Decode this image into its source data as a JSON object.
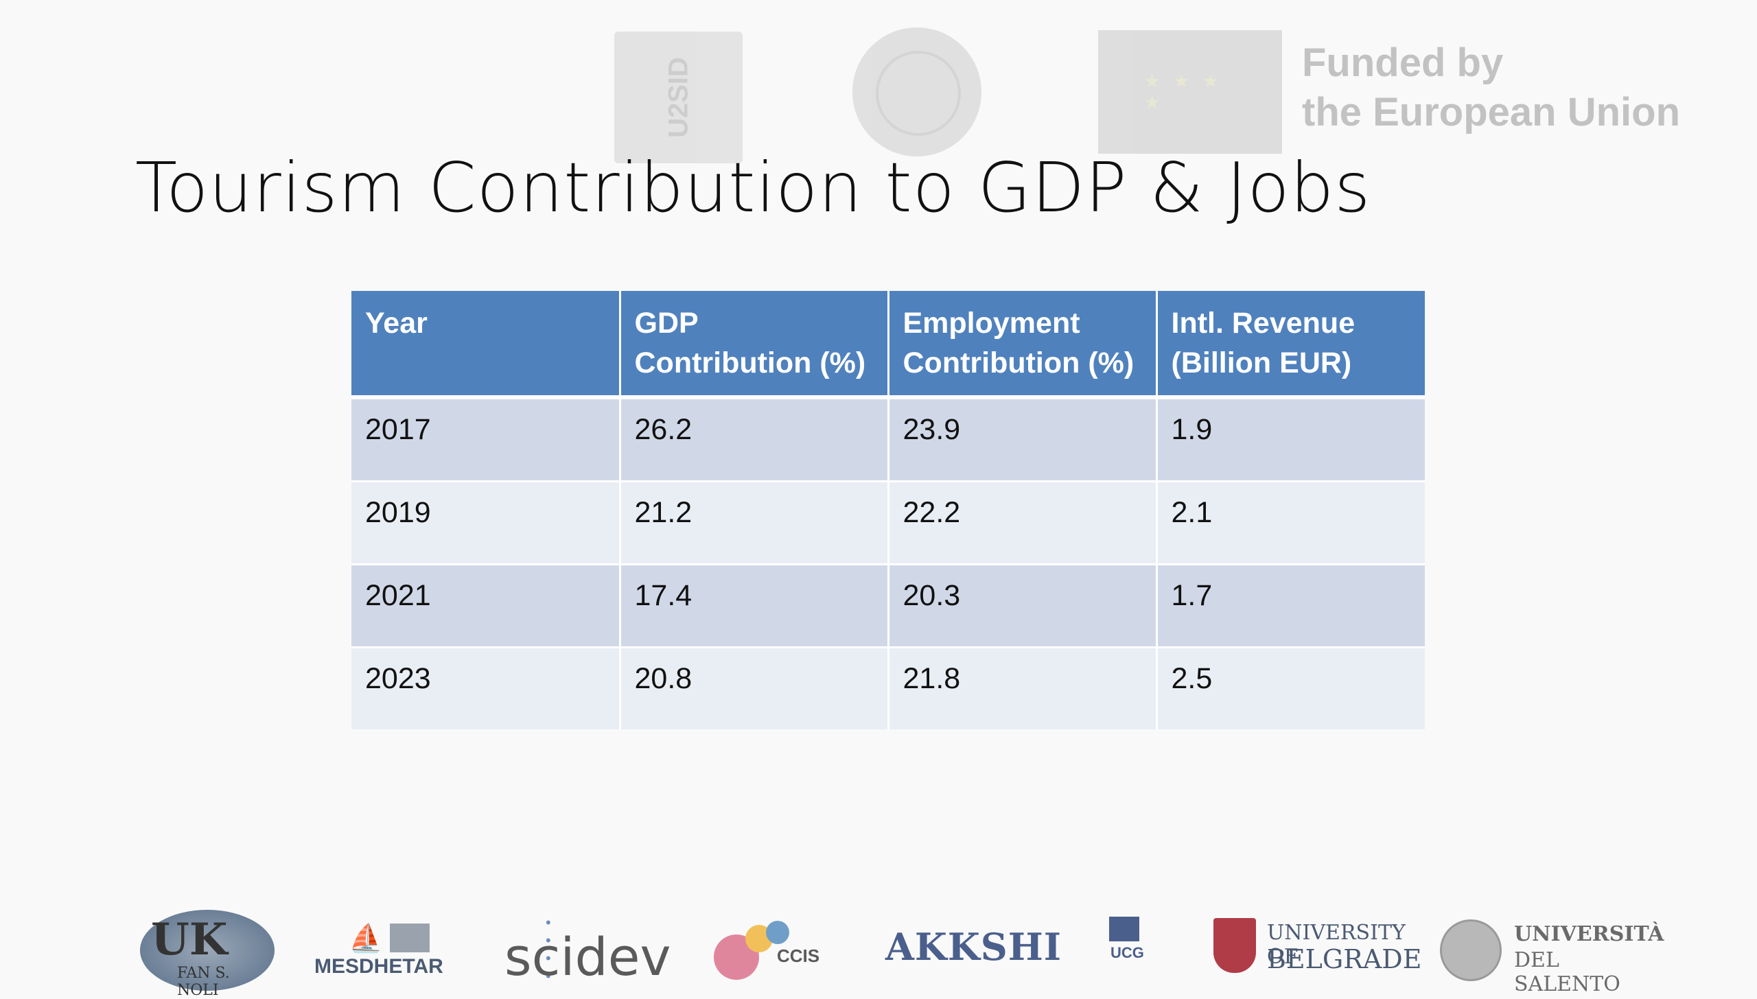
{
  "slide": {
    "title": "Tourism Contribution to GDP & Jobs",
    "funding_line1": "Funded by",
    "funding_line2": "the European Union"
  },
  "table": {
    "headers": [
      [
        "Year",
        ""
      ],
      [
        "GDP",
        "Contribution (%)"
      ],
      [
        "Employment",
        "Contribution (%)"
      ],
      [
        "Intl. Revenue",
        "(Billion EUR)"
      ]
    ],
    "rows": [
      [
        "2017",
        "26.2",
        "23.9",
        "1.9"
      ],
      [
        "2019",
        "21.2",
        "22.2",
        "2.1"
      ],
      [
        "2021",
        "17.4",
        "20.3",
        "1.7"
      ],
      [
        "2023",
        "20.8",
        "21.8",
        "2.5"
      ]
    ]
  },
  "logos": {
    "top": [
      "u2sid-logo",
      "university-seal-logo",
      "eu-flag-logo"
    ],
    "bottom": {
      "uk_text": "UK",
      "uk_sub": "FAN S. NOLI",
      "mesdhetar_text": "MESDHETAR",
      "scidev_text": "scidev",
      "ccis_text": "CCIS",
      "akkshi_text": "AKKSHI",
      "ucg_text": "UCG",
      "belgrade_line1": "UNIVERSITY OF",
      "belgrade_line2": "BELGRADE",
      "salento_line1": "UNIVERSITÀ",
      "salento_line2": "DEL SALENTO"
    }
  },
  "colors": {
    "header_blue": "#4f81bd",
    "row_band_dark": "#d0d8e8",
    "row_band_light": "#e9edf4"
  }
}
